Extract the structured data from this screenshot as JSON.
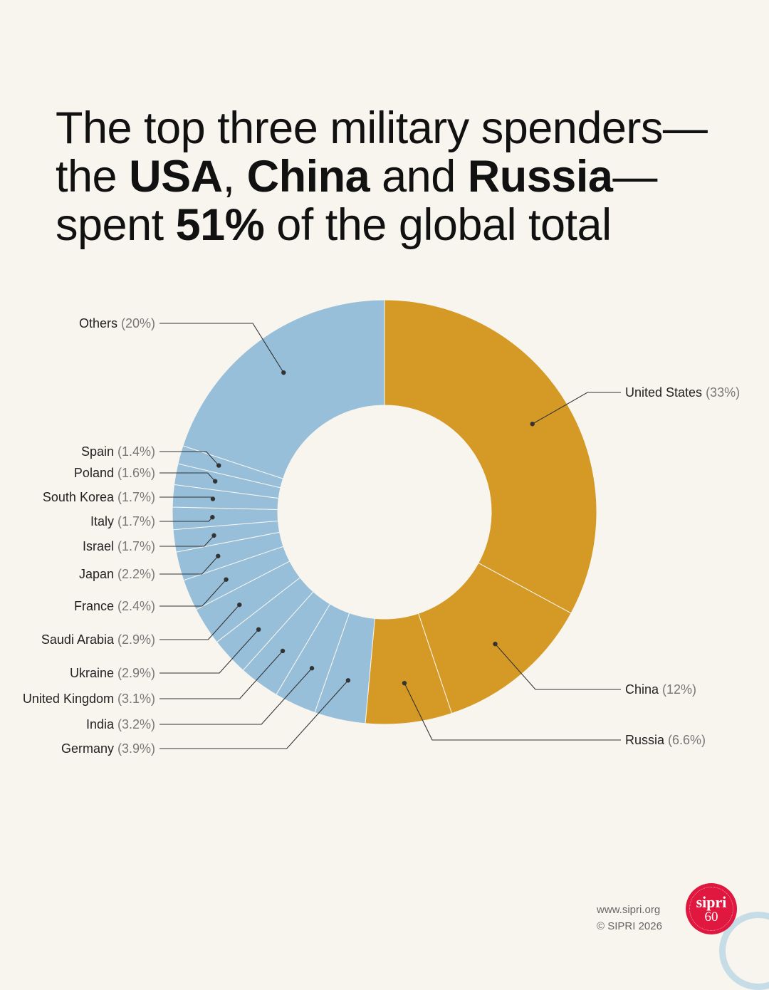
{
  "title": {
    "l1": "The top three military spenders—",
    "l2_a": "the ",
    "l2_b": "USA",
    "l2_c": ", ",
    "l2_d": "China",
    "l2_e": " and ",
    "l2_f": "Russia",
    "l2_g": "—",
    "l3_a": "spent ",
    "l3_b": "51%",
    "l3_c": " of the global total"
  },
  "colors": {
    "top3": "#d59925",
    "rest": "#97bfd9",
    "background": "#f8f5ee",
    "leader": "#333333"
  },
  "chart_data": {
    "type": "pie",
    "style": "donut",
    "start": "12 o'clock, clockwise",
    "slices": [
      {
        "label": "United States",
        "value": 33,
        "pct_text": "(33%)",
        "group": "top3"
      },
      {
        "label": "China",
        "value": 12,
        "pct_text": "(12%)",
        "group": "top3"
      },
      {
        "label": "Russia",
        "value": 6.6,
        "pct_text": "(6.6%)",
        "group": "top3"
      },
      {
        "label": "Germany",
        "value": 3.9,
        "pct_text": "(3.9%)",
        "group": "rest"
      },
      {
        "label": "India",
        "value": 3.2,
        "pct_text": "(3.2%)",
        "group": "rest"
      },
      {
        "label": "United Kingdom",
        "value": 3.1,
        "pct_text": "(3.1%)",
        "group": "rest"
      },
      {
        "label": "Ukraine",
        "value": 2.9,
        "pct_text": "(2.9%)",
        "group": "rest"
      },
      {
        "label": "Saudi Arabia",
        "value": 2.9,
        "pct_text": "(2.9%)",
        "group": "rest"
      },
      {
        "label": "France",
        "value": 2.4,
        "pct_text": "(2.4%)",
        "group": "rest"
      },
      {
        "label": "Japan",
        "value": 2.2,
        "pct_text": "(2.2%)",
        "group": "rest"
      },
      {
        "label": "Israel",
        "value": 1.7,
        "pct_text": "(1.7%)",
        "group": "rest"
      },
      {
        "label": "Italy",
        "value": 1.7,
        "pct_text": "(1.7%)",
        "group": "rest"
      },
      {
        "label": "South Korea",
        "value": 1.7,
        "pct_text": "(1.7%)",
        "group": "rest"
      },
      {
        "label": "Poland",
        "value": 1.6,
        "pct_text": "(1.6%)",
        "group": "rest"
      },
      {
        "label": "Spain",
        "value": 1.4,
        "pct_text": "(1.4%)",
        "group": "rest"
      },
      {
        "label": "Others",
        "value": 20,
        "pct_text": "(20%)",
        "group": "rest"
      }
    ]
  },
  "footer": {
    "url": "www.sipri.org",
    "copyright": "© SIPRI 2026"
  },
  "logo": {
    "name": "sipri",
    "years": "60"
  }
}
